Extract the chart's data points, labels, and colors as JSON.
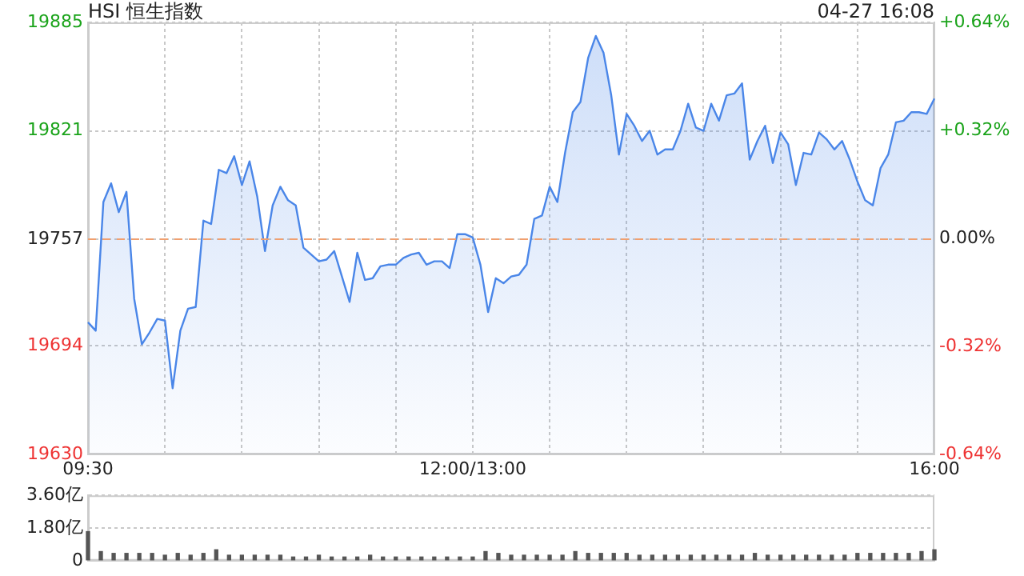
{
  "chart_data": [
    {
      "type": "area",
      "title": "HSI 恒生指数",
      "annotations": [
        "04-27 16:08"
      ],
      "categories": [
        "09:30",
        null,
        null,
        null,
        null,
        null,
        null,
        null,
        null,
        null,
        null,
        null,
        null,
        null,
        null,
        null,
        null,
        null,
        null,
        null,
        null,
        null,
        null,
        null,
        null,
        null,
        null,
        null,
        null,
        null,
        null,
        null,
        null,
        null,
        null,
        null,
        null,
        null,
        null,
        null,
        null,
        null,
        null,
        null,
        null,
        null,
        null,
        null,
        null,
        null,
        "12:00/13:00",
        null,
        null,
        null,
        null,
        null,
        null,
        null,
        null,
        null,
        null,
        null,
        null,
        null,
        null,
        null,
        null,
        null,
        null,
        null,
        null,
        null,
        null,
        null,
        null,
        null,
        null,
        null,
        null,
        null,
        null,
        null,
        null,
        null,
        null,
        null,
        null,
        null,
        null,
        null,
        null,
        null,
        null,
        null,
        null,
        null,
        null,
        null,
        null,
        null,
        null,
        null,
        null,
        null,
        null,
        null,
        null,
        null,
        null,
        null,
        "16:00"
      ],
      "series": [
        {
          "color": "#4a86e8",
          "values": [
            19708,
            19703,
            19779,
            19790,
            19773,
            19785,
            19722,
            19695,
            19702,
            19710,
            19709,
            19669,
            19703,
            19716,
            19717,
            19768,
            19766,
            19798,
            19796,
            19806,
            19789,
            19803,
            19782,
            19750,
            19777,
            19788,
            19780,
            19777,
            19752,
            19748,
            19744,
            19745,
            19750,
            19735,
            19720,
            19749,
            19733,
            19734,
            19741,
            19742,
            19742,
            19746,
            19748,
            19749,
            19742,
            19744,
            19744,
            19740,
            19760,
            19760,
            19758,
            19742,
            19714,
            19734,
            19731,
            19735,
            19736,
            19742,
            19769,
            19771,
            19788,
            19779,
            19808,
            19832,
            19838,
            19864,
            19877,
            19867,
            19842,
            19807,
            19831,
            19824,
            19815,
            19821,
            19807,
            19810,
            19810,
            19821,
            19837,
            19823,
            19821,
            19837,
            19827,
            19842,
            19843,
            19849,
            19804,
            19815,
            19824,
            19802,
            19820,
            19813,
            19789,
            19808,
            19807,
            19820,
            19816,
            19810,
            19815,
            19804,
            19791,
            19780,
            19777,
            19799,
            19807,
            19826,
            19827,
            19832,
            19832,
            19831,
            19840
          ]
        }
      ],
      "ylim": [
        19630,
        19885
      ],
      "yticks": [
        19630,
        19694,
        19757,
        19821,
        19885
      ],
      "y2lim": [
        -0.64,
        0.64
      ],
      "y2ticks": [
        {
          "value": -0.64,
          "label": "-0.64%"
        },
        {
          "value": -0.32,
          "label": "-0.32%"
        },
        {
          "value": 0,
          "label": "0.00%"
        },
        {
          "value": 0.32,
          "label": "+0.32%"
        },
        {
          "value": 0.64,
          "label": "+0.64%"
        }
      ],
      "ref_lines": [
        {
          "axis": "y",
          "value": 19757,
          "color": "#f0a070",
          "line_style": "dashed"
        }
      ],
      "grid": true
    },
    {
      "type": "bar",
      "color": "#555555",
      "categories": [
        null,
        null,
        null,
        null,
        null,
        null,
        null,
        null,
        null,
        null,
        null,
        null,
        null,
        null,
        null,
        null,
        null,
        null,
        null,
        null,
        null,
        null,
        null,
        null,
        null,
        null,
        null,
        null,
        null,
        null,
        null,
        null,
        null,
        null,
        null,
        null,
        null,
        null,
        null,
        null,
        null,
        null,
        null,
        null,
        null,
        null,
        null,
        null,
        null,
        null,
        null,
        null,
        null,
        null,
        null,
        null,
        null,
        null,
        null,
        null,
        null,
        null,
        null,
        null,
        null,
        null,
        null
      ],
      "values": [
        1.6,
        0.5,
        0.4,
        0.4,
        0.4,
        0.4,
        0.3,
        0.4,
        0.3,
        0.4,
        0.6,
        0.3,
        0.3,
        0.3,
        0.3,
        0.3,
        0.2,
        0.2,
        0.3,
        0.2,
        0.2,
        0.2,
        0.3,
        0.2,
        0.2,
        0.2,
        0.2,
        0.2,
        0.2,
        0.2,
        0.2,
        0.5,
        0.4,
        0.3,
        0.3,
        0.3,
        0.3,
        0.3,
        0.5,
        0.4,
        0.4,
        0.4,
        0.4,
        0.3,
        0.3,
        0.3,
        0.3,
        0.3,
        0.3,
        0.3,
        0.3,
        0.3,
        0.4,
        0.3,
        0.3,
        0.3,
        0.3,
        0.3,
        0.3,
        0.3,
        0.4,
        0.4,
        0.4,
        0.4,
        0.4,
        0.5,
        0.6
      ],
      "ylim": [
        0,
        3.6
      ],
      "yticks": [
        0,
        {
          "value": 1.8,
          "label": "1.80亿"
        },
        {
          "value": 3.6,
          "label": "3.60亿"
        }
      ],
      "grid": "y",
      "tick_labels": "y"
    }
  ]
}
